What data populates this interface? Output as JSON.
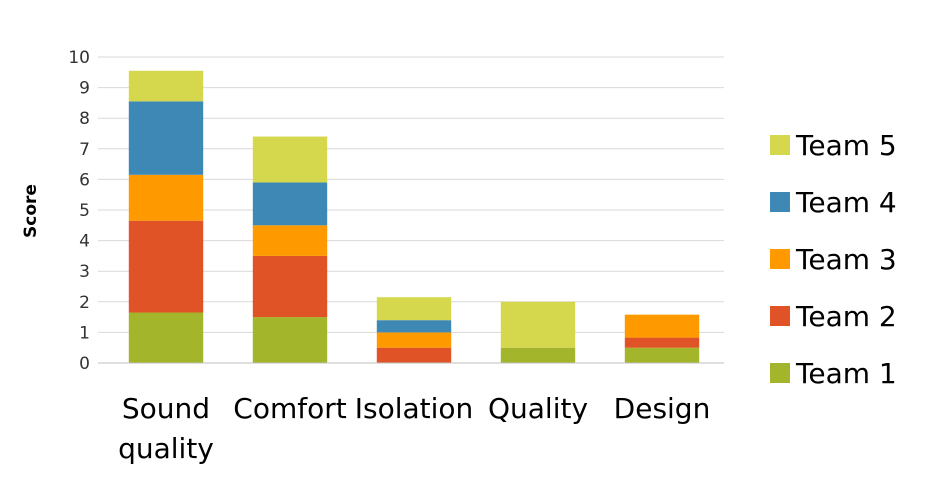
{
  "chart_data": {
    "type": "bar",
    "stacked": true,
    "title": "",
    "xlabel": "",
    "ylabel": "Score",
    "ylim": [
      0,
      10
    ],
    "yticks": [
      0,
      1,
      2,
      3,
      4,
      5,
      6,
      7,
      8,
      9,
      10
    ],
    "grid": true,
    "legend_position": "right",
    "categories": [
      "Sound quality",
      "Comfort",
      "Isolation",
      "Quality",
      "Design"
    ],
    "series": [
      {
        "name": "Team 1",
        "color": "#A3B52B",
        "values": [
          1.65,
          1.5,
          0.0,
          0.5,
          0.5
        ]
      },
      {
        "name": "Team 2",
        "color": "#E05327",
        "values": [
          3.0,
          2.0,
          0.5,
          0.0,
          0.33
        ]
      },
      {
        "name": "Team 3",
        "color": "#FF9900",
        "values": [
          1.5,
          1.0,
          0.5,
          0.0,
          0.75
        ]
      },
      {
        "name": "Team 4",
        "color": "#3E88B6",
        "values": [
          2.4,
          1.4,
          0.4,
          0.0,
          0.0
        ]
      },
      {
        "name": "Team 5",
        "color": "#D5D84D",
        "values": [
          1.0,
          1.5,
          0.75,
          1.5,
          0.0
        ]
      }
    ]
  }
}
